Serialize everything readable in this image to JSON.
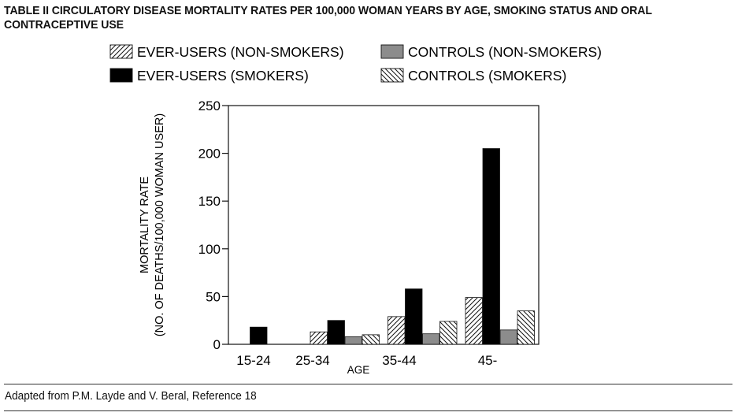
{
  "title": "TABLE II CIRCULATORY DISEASE MORTALITY RATES PER 100,000 WOMAN YEARS BY AGE, SMOKING STATUS AND ORAL CONTRACEPTIVE USE",
  "source": "Adapted from P.M. Layde and V. Beral, Reference 18",
  "chart_data": {
    "type": "bar",
    "xlabel": "AGE",
    "ylabel": [
      "MORTALITY RATE",
      "(NO. OF DEATHS/100,000 WOMAN USER)"
    ],
    "ylim": [
      0,
      250
    ],
    "yticks": [
      0,
      50,
      100,
      150,
      200,
      250
    ],
    "grid": false,
    "legend_position": "top",
    "categories": [
      "15-24",
      "25-34",
      "35-44",
      "45-"
    ],
    "series": [
      {
        "name": "EVER-USERS (NON-SMOKERS)",
        "fill": "hatch-forward",
        "values": [
          0,
          13,
          29,
          49
        ]
      },
      {
        "name": "EVER-USERS (SMOKERS)",
        "fill": "#000000",
        "values": [
          18,
          25,
          58,
          205
        ]
      },
      {
        "name": "CONTROLS (NON-SMOKERS)",
        "fill": "#8c8c8c",
        "values": [
          0,
          8,
          11,
          15
        ]
      },
      {
        "name": "CONTROLS (SMOKERS)",
        "fill": "hatch-back",
        "values": [
          0,
          10,
          24,
          35
        ]
      }
    ]
  }
}
